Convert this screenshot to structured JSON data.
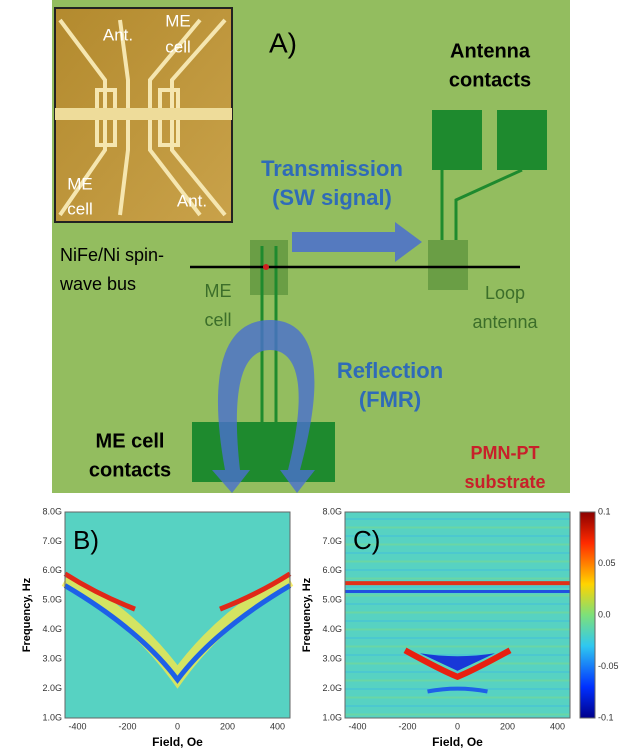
{
  "panel_a": {
    "label": "A)",
    "inset": {
      "ant_top": "Ant.",
      "me_top": [
        "ME",
        "cell"
      ],
      "me_bottom": [
        "ME",
        "cell"
      ],
      "ant_bottom": "Ant."
    },
    "antenna_contacts": [
      "Antenna",
      "contacts"
    ],
    "transmission": [
      "Transmission",
      "(SW signal)"
    ],
    "bus": [
      "NiFe/Ni spin-",
      "wave bus"
    ],
    "me_cell": [
      "ME",
      "cell"
    ],
    "loop_antenna": [
      "Loop",
      "antenna"
    ],
    "reflection": [
      "Reflection",
      "(FMR)"
    ],
    "me_cell_contacts": [
      "ME cell",
      "contacts"
    ],
    "substrate": [
      "PMN-PT",
      "substrate"
    ]
  },
  "panel_b": {
    "label": "B)",
    "ylabel": "Frequency, Hz",
    "xlabel": "Field, Oe",
    "yticks": [
      "8.0G",
      "7.0G",
      "6.0G",
      "5.0G",
      "4.0G",
      "3.0G",
      "2.0G",
      "1.0G"
    ],
    "xticks": [
      "-400",
      "-200",
      "0",
      "200",
      "400"
    ]
  },
  "panel_c": {
    "label": "C)",
    "ylabel": "Frequency, Hz",
    "xlabel": "Field, Oe",
    "yticks": [
      "8.0G",
      "7.0G",
      "6.0G",
      "5.0G",
      "4.0G",
      "3.0G",
      "2.0G",
      "1.0G"
    ],
    "xticks": [
      "-400",
      "-200",
      "0",
      "200",
      "400"
    ],
    "colorbar_ticks": [
      "0.1",
      "0.05",
      "0.0",
      "-0.05",
      "-0.1"
    ]
  }
}
